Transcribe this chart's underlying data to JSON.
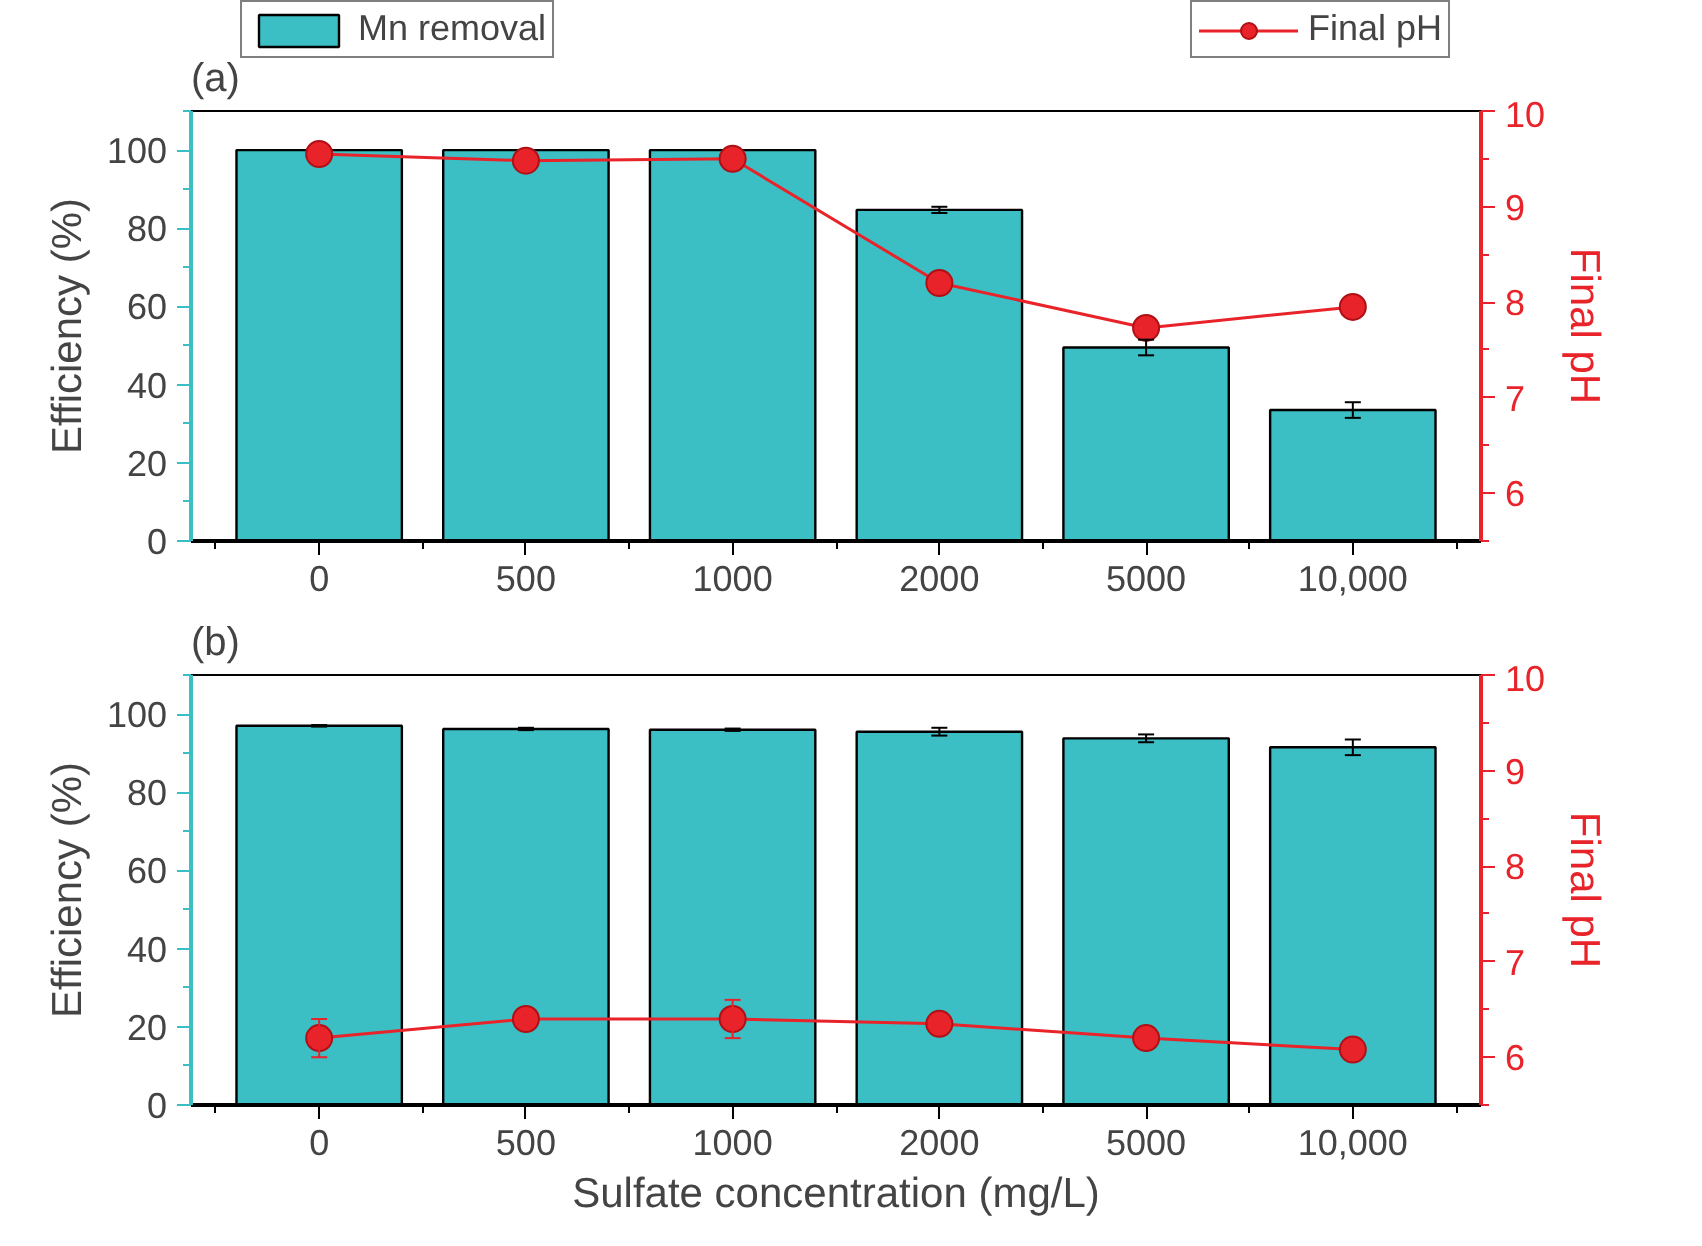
{
  "chart_data": [
    {
      "type": "bar",
      "annotations": [
        "(a)"
      ],
      "ylabel": "Efficiency (%)",
      "y2label": "Final pH",
      "categories": [
        "0",
        "500",
        "1000",
        "2000",
        "5000",
        "10,000"
      ],
      "ylim": [
        0,
        110
      ],
      "yticks": [
        0,
        20,
        40,
        60,
        80,
        100
      ],
      "y2lim": [
        5.5,
        10
      ],
      "y2ticks": [
        6,
        7,
        8,
        9,
        10
      ],
      "legend": "top",
      "grid": false,
      "series": [
        {
          "name": "Mn removal",
          "type": "bar",
          "color": "#3bbec4",
          "values": [
            100,
            100,
            100,
            84.7,
            49.5,
            33.5
          ],
          "errors": [
            null,
            null,
            null,
            0.8,
            2,
            2
          ]
        },
        {
          "name": "Final pH",
          "type": "line",
          "axis": "y2",
          "color": "#e8232a",
          "marker": "circle",
          "values": [
            9.55,
            9.48,
            9.5,
            8.2,
            7.73,
            7.95
          ],
          "errors": [
            0.05,
            0.05,
            0.04,
            0.05,
            0.05,
            0.05
          ]
        }
      ]
    },
    {
      "type": "bar",
      "annotations": [
        "(b)"
      ],
      "xlabel": "Sulfate concentration (mg/L)",
      "ylabel": "Efficiency (%)",
      "y2label": "Final pH",
      "categories": [
        "0",
        "500",
        "1000",
        "2000",
        "5000",
        "10,000"
      ],
      "ylim": [
        0,
        110
      ],
      "yticks": [
        0,
        20,
        40,
        60,
        80,
        100
      ],
      "y2lim": [
        5.5,
        10
      ],
      "y2ticks": [
        6,
        7,
        8,
        9,
        10
      ],
      "grid": false,
      "series": [
        {
          "type": "bar",
          "color": "#3bbec4",
          "values": [
            97,
            96.2,
            96,
            95.5,
            93.8,
            91.5
          ],
          "errors": [
            0.2,
            0.3,
            0.3,
            1,
            1,
            2
          ]
        },
        {
          "type": "line",
          "axis": "y2",
          "color": "#e8232a",
          "marker": "circle",
          "values": [
            6.2,
            6.4,
            6.4,
            6.35,
            6.2,
            6.08
          ],
          "errors": [
            0.2,
            0.05,
            0.2,
            0.05,
            0.05,
            0.05
          ]
        }
      ]
    }
  ]
}
